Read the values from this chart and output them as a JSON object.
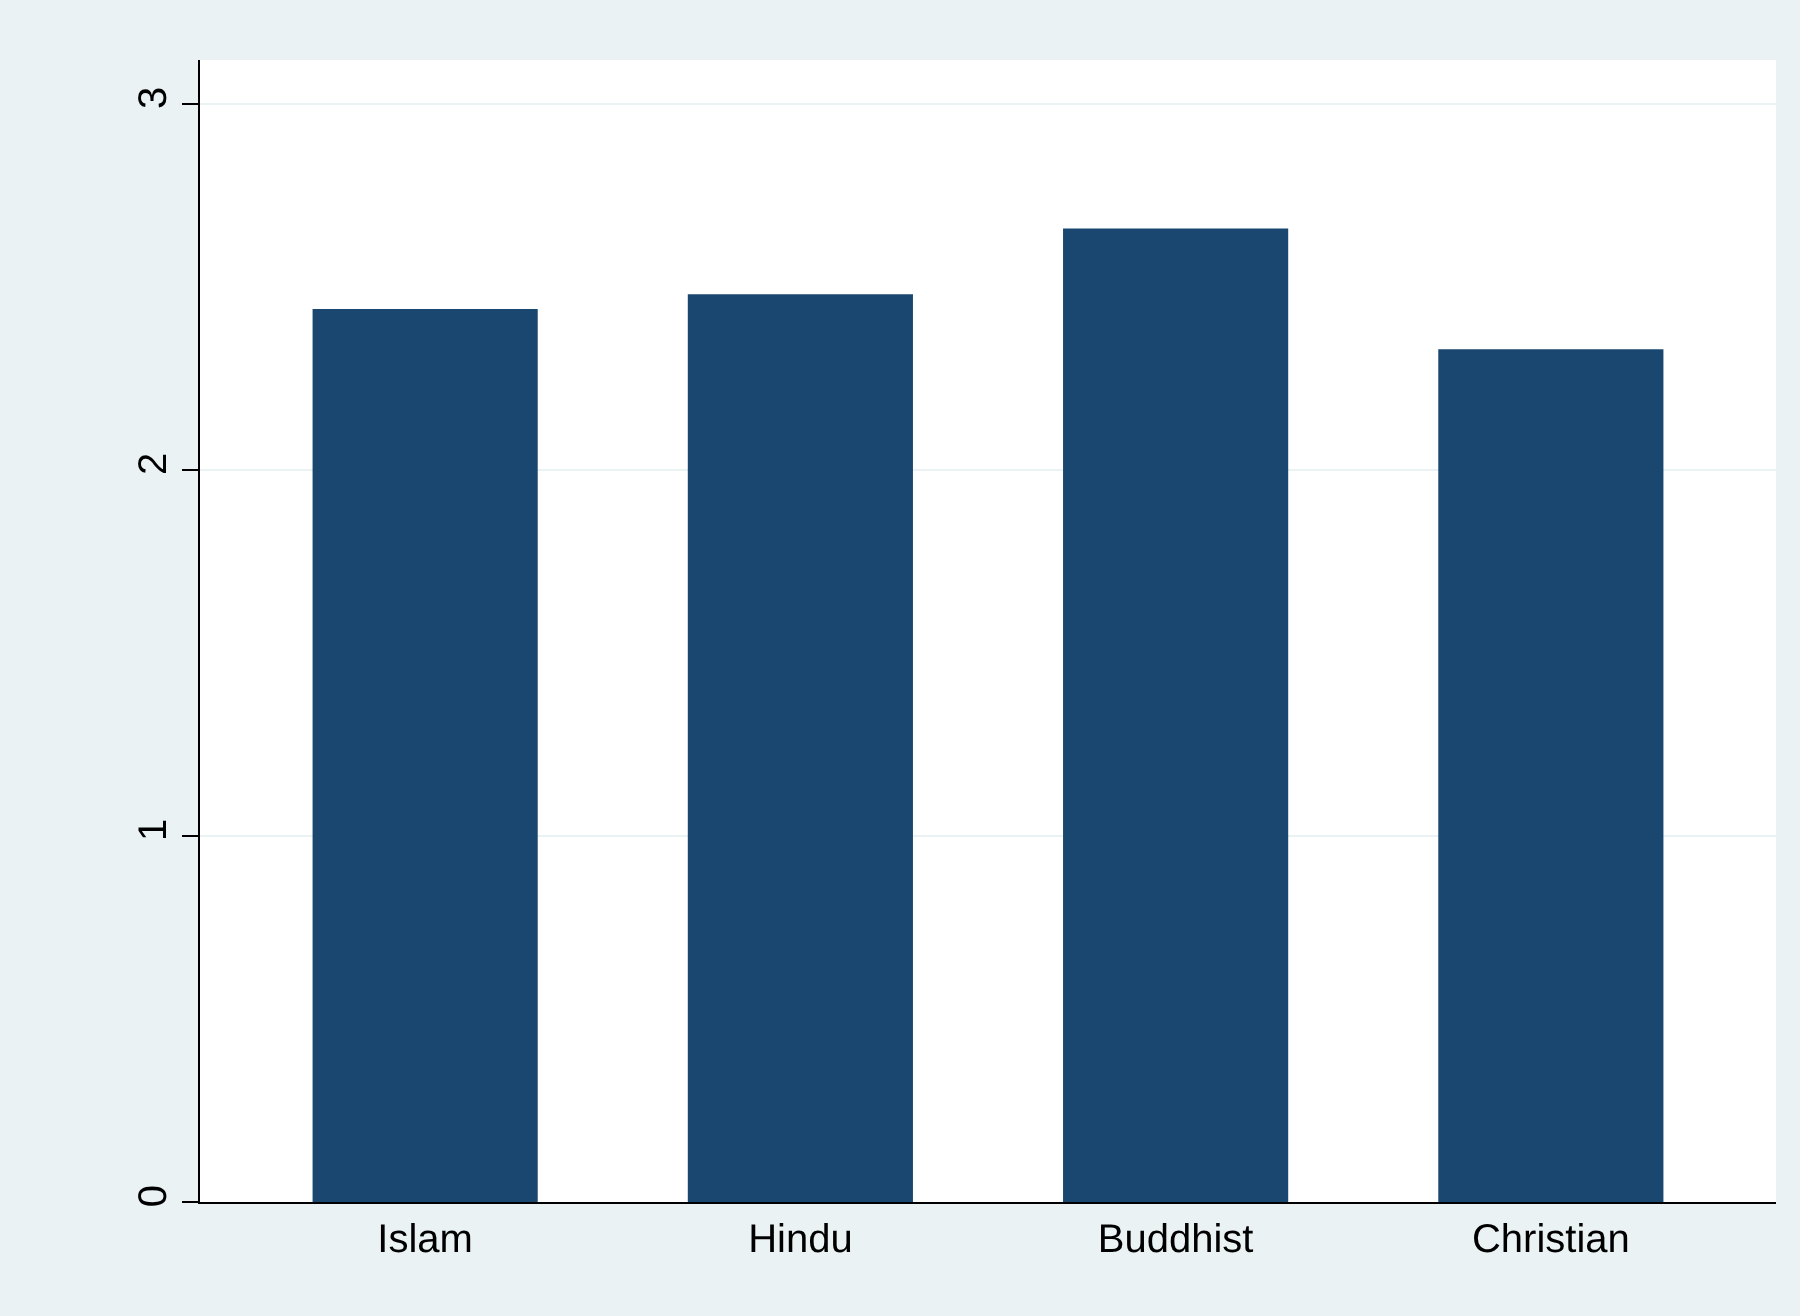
{
  "chart_data": {
    "type": "bar",
    "categories": [
      "Islam",
      "Hindu",
      "Buddhist",
      "Christian"
    ],
    "values": [
      2.44,
      2.48,
      2.66,
      2.33
    ],
    "color": "#1a476f",
    "ylim": [
      0,
      3.12
    ],
    "yticks": [
      0,
      1,
      2,
      3
    ],
    "grid": "y",
    "legend": false
  }
}
